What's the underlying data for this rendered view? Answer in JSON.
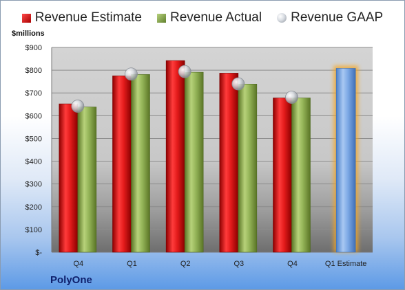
{
  "legend": {
    "estimate": "Revenue Estimate",
    "actual": "Revenue Actual",
    "gaap": "Revenue GAAP"
  },
  "unit_label": "$millions",
  "company": "PolyOne",
  "colors": {
    "estimate": "#d81e1e",
    "actual": "#8aaa4e",
    "forecast": "#6f9fe0",
    "highlight": "#f5a623"
  },
  "chart_data": {
    "type": "bar",
    "categories": [
      "Q4",
      "Q1",
      "Q2",
      "Q3",
      "Q4",
      "Q1 Estimate"
    ],
    "series": [
      {
        "name": "Revenue Estimate",
        "values": [
          652,
          775,
          842,
          787,
          678,
          null
        ]
      },
      {
        "name": "Revenue Actual",
        "values": [
          638,
          781,
          791,
          739,
          678,
          808
        ]
      },
      {
        "name": "Revenue GAAP",
        "type": "scatter",
        "values": [
          642,
          783,
          794,
          740,
          681,
          null
        ]
      }
    ],
    "ylim": [
      0,
      900
    ],
    "yticks": [
      0,
      100,
      200,
      300,
      400,
      500,
      600,
      700,
      800,
      900
    ],
    "ytick_labels": [
      "$-",
      "$100",
      "$200",
      "$300",
      "$400",
      "$500",
      "$600",
      "$700",
      "$800",
      "$900"
    ],
    "legend_position": "top",
    "grid": true
  }
}
